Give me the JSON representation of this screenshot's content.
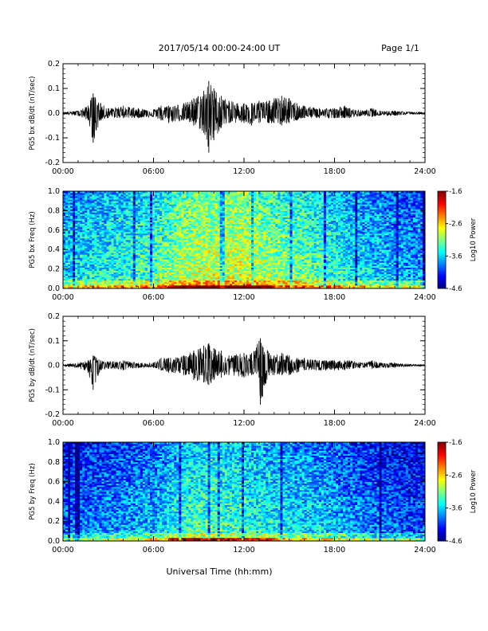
{
  "header": {
    "title": "2017/05/14  00:00-24:00 UT",
    "page_label": "Page 1/1"
  },
  "footer": {
    "xlabel": "Universal Time (hh:mm)"
  },
  "chart_data": [
    {
      "type": "line",
      "ylabel": "PG5 bx dB/dt (nT/sec)",
      "xlim": [
        "00:00",
        "24:00"
      ],
      "ylim": [
        -0.2,
        0.2
      ],
      "x_ticks": [
        "00:00",
        "06:00",
        "12:00",
        "18:00",
        "24:00"
      ],
      "y_ticks": [
        "-0.2",
        "-0.1",
        "0.0",
        "0.1",
        "0.2"
      ],
      "series": [
        {
          "x": [
            "00:00",
            "01:00",
            "01:40",
            "02:00",
            "02:30",
            "03:00",
            "04:00",
            "05:00",
            "06:00",
            "06:30",
            "07:00",
            "08:00",
            "08:40",
            "09:20",
            "09:40",
            "10:00",
            "10:30",
            "11:00",
            "12:00",
            "12:30",
            "13:00",
            "13:40",
            "14:00",
            "14:30",
            "15:00",
            "15:30",
            "16:00",
            "17:00",
            "18:00",
            "18:40",
            "19:00",
            "20:00",
            "20:30",
            "21:00",
            "22:00",
            "23:00",
            "24:00"
          ],
          "max": [
            0.005,
            0.01,
            0.03,
            0.08,
            0.04,
            0.02,
            0.03,
            0.02,
            0.015,
            0.03,
            0.03,
            0.04,
            0.06,
            0.09,
            0.13,
            0.1,
            0.07,
            0.05,
            0.04,
            0.04,
            0.05,
            0.05,
            0.06,
            0.07,
            0.06,
            0.04,
            0.03,
            0.02,
            0.02,
            0.03,
            0.02,
            0.01,
            0.02,
            0.01,
            0.01,
            0.005,
            0.005
          ],
          "min": [
            -0.005,
            -0.01,
            -0.03,
            -0.12,
            -0.03,
            -0.02,
            -0.02,
            -0.02,
            -0.015,
            -0.03,
            -0.04,
            -0.03,
            -0.05,
            -0.08,
            -0.16,
            -0.11,
            -0.06,
            -0.04,
            -0.04,
            -0.05,
            -0.04,
            -0.04,
            -0.04,
            -0.05,
            -0.04,
            -0.03,
            -0.02,
            -0.02,
            -0.02,
            -0.02,
            -0.02,
            -0.01,
            -0.015,
            -0.01,
            -0.01,
            -0.005,
            -0.005
          ]
        }
      ]
    },
    {
      "type": "heatmap",
      "ylabel": "PG5 bx Freq (Hz)",
      "xlim": [
        "00:00",
        "24:00"
      ],
      "ylim": [
        0.0,
        1.0
      ],
      "x_ticks": [
        "00:00",
        "06:00",
        "12:00",
        "18:00",
        "24:00"
      ],
      "y_ticks": [
        "0.0",
        "0.2",
        "0.4",
        "0.6",
        "0.8",
        "1.0"
      ],
      "colorbar": {
        "label": "Log10 Power",
        "range": [
          -4.6,
          -1.6
        ],
        "ticks": [
          "-1.6",
          "-2.6",
          "-3.6",
          "-4.6"
        ]
      },
      "description_levels": {
        "x_hours": [
          0,
          2,
          4,
          6,
          8,
          10,
          12,
          14,
          16,
          18,
          20,
          22,
          24
        ],
        "mean_log_power": [
          -3.5,
          -3.4,
          -3.3,
          -3.2,
          -2.9,
          -2.8,
          -2.8,
          -3.0,
          -3.1,
          -3.3,
          -3.5,
          -3.6,
          -3.7
        ]
      }
    },
    {
      "type": "line",
      "ylabel": "PG5 by dB/dt (nT/sec)",
      "xlim": [
        "00:00",
        "24:00"
      ],
      "ylim": [
        -0.2,
        0.2
      ],
      "x_ticks": [
        "00:00",
        "06:00",
        "12:00",
        "18:00",
        "24:00"
      ],
      "y_ticks": [
        "-0.2",
        "-0.1",
        "0.0",
        "0.1",
        "0.2"
      ],
      "series": [
        {
          "x": [
            "00:00",
            "01:00",
            "01:40",
            "02:00",
            "02:30",
            "03:00",
            "04:00",
            "05:00",
            "06:00",
            "06:30",
            "07:00",
            "08:00",
            "08:40",
            "09:20",
            "09:40",
            "10:00",
            "10:30",
            "11:00",
            "12:00",
            "12:30",
            "13:00",
            "13:05",
            "13:40",
            "14:00",
            "14:30",
            "15:00",
            "15:30",
            "16:00",
            "17:00",
            "18:00",
            "18:40",
            "19:00",
            "20:00",
            "20:30",
            "21:00",
            "22:00",
            "23:00",
            "24:00"
          ],
          "max": [
            0.004,
            0.01,
            0.02,
            0.04,
            0.02,
            0.015,
            0.02,
            0.01,
            0.01,
            0.03,
            0.03,
            0.04,
            0.06,
            0.08,
            0.09,
            0.07,
            0.06,
            0.04,
            0.05,
            0.05,
            0.1,
            0.11,
            0.05,
            0.04,
            0.05,
            0.04,
            0.03,
            0.03,
            0.02,
            0.02,
            0.02,
            0.02,
            0.01,
            0.02,
            0.01,
            0.01,
            0.005,
            0.004
          ],
          "min": [
            -0.004,
            -0.01,
            -0.03,
            -0.1,
            -0.02,
            -0.015,
            -0.02,
            -0.01,
            -0.01,
            -0.02,
            -0.03,
            -0.04,
            -0.06,
            -0.07,
            -0.08,
            -0.06,
            -0.05,
            -0.04,
            -0.05,
            -0.04,
            -0.05,
            -0.16,
            -0.04,
            -0.04,
            -0.04,
            -0.04,
            -0.03,
            -0.02,
            -0.02,
            -0.02,
            -0.02,
            -0.015,
            -0.01,
            -0.015,
            -0.01,
            -0.01,
            -0.005,
            -0.004
          ]
        }
      ]
    },
    {
      "type": "heatmap",
      "ylabel": "PG5 by Freq (Hz)",
      "xlim": [
        "00:00",
        "24:00"
      ],
      "ylim": [
        0.0,
        1.0
      ],
      "x_ticks": [
        "00:00",
        "06:00",
        "12:00",
        "18:00",
        "24:00"
      ],
      "y_ticks": [
        "0.0",
        "0.2",
        "0.4",
        "0.6",
        "0.8",
        "1.0"
      ],
      "colorbar": {
        "label": "Log10 Power",
        "range": [
          -4.6,
          -1.6
        ],
        "ticks": [
          "-1.6",
          "-2.6",
          "-3.6",
          "-4.6"
        ]
      },
      "description_levels": {
        "x_hours": [
          0,
          2,
          4,
          6,
          8,
          10,
          12,
          14,
          16,
          18,
          20,
          22,
          24
        ],
        "mean_log_power": [
          -3.9,
          -3.8,
          -3.7,
          -3.6,
          -3.3,
          -3.2,
          -3.3,
          -3.4,
          -3.5,
          -3.6,
          -3.8,
          -3.9,
          -4.0
        ]
      }
    }
  ]
}
